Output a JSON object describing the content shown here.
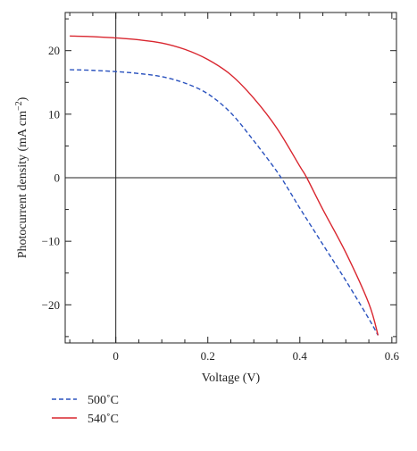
{
  "chart_data": {
    "type": "line",
    "xlabel": "Voltage (V)",
    "ylabel": "Photocurrent density (mA cm",
    "ylabel_sup": "−2",
    "ylabel_close": ")",
    "xlim": [
      -0.11,
      0.61
    ],
    "ylim": [
      -26,
      26
    ],
    "xticks": [
      0,
      0.2,
      0.4,
      0.6
    ],
    "xtick_labels": [
      "0",
      "0.2",
      "0.4",
      "0.6"
    ],
    "yticks": [
      20,
      10,
      0,
      -10,
      -20
    ],
    "ytick_labels": [
      "20",
      "10",
      "0",
      "−10",
      "−20"
    ],
    "reference_lines": {
      "x": 0,
      "y": 0
    },
    "grid": false,
    "legend_position": "bottom-left, below plot",
    "series": [
      {
        "name": "500˚C",
        "color": "#2a52be",
        "style": "dashed",
        "x": [
          -0.1,
          -0.05,
          0,
          0.05,
          0.1,
          0.15,
          0.2,
          0.25,
          0.3,
          0.35,
          0.38,
          0.4,
          0.45,
          0.5,
          0.55,
          0.57
        ],
        "y": [
          17.0,
          16.9,
          16.7,
          16.4,
          15.9,
          14.9,
          13.2,
          10.2,
          5.8,
          1.0,
          -2.4,
          -4.8,
          -10.5,
          -16.2,
          -22.2,
          -24.8
        ]
      },
      {
        "name": "540˚C",
        "color": "#d9262f",
        "style": "solid",
        "x": [
          -0.1,
          -0.05,
          0,
          0.05,
          0.1,
          0.15,
          0.2,
          0.25,
          0.3,
          0.35,
          0.4,
          0.415,
          0.45,
          0.5,
          0.55,
          0.57
        ],
        "y": [
          22.3,
          22.2,
          22.0,
          21.7,
          21.2,
          20.2,
          18.6,
          16.2,
          12.5,
          7.8,
          1.8,
          0.0,
          -5.0,
          -11.8,
          -19.8,
          -24.8
        ]
      }
    ]
  }
}
